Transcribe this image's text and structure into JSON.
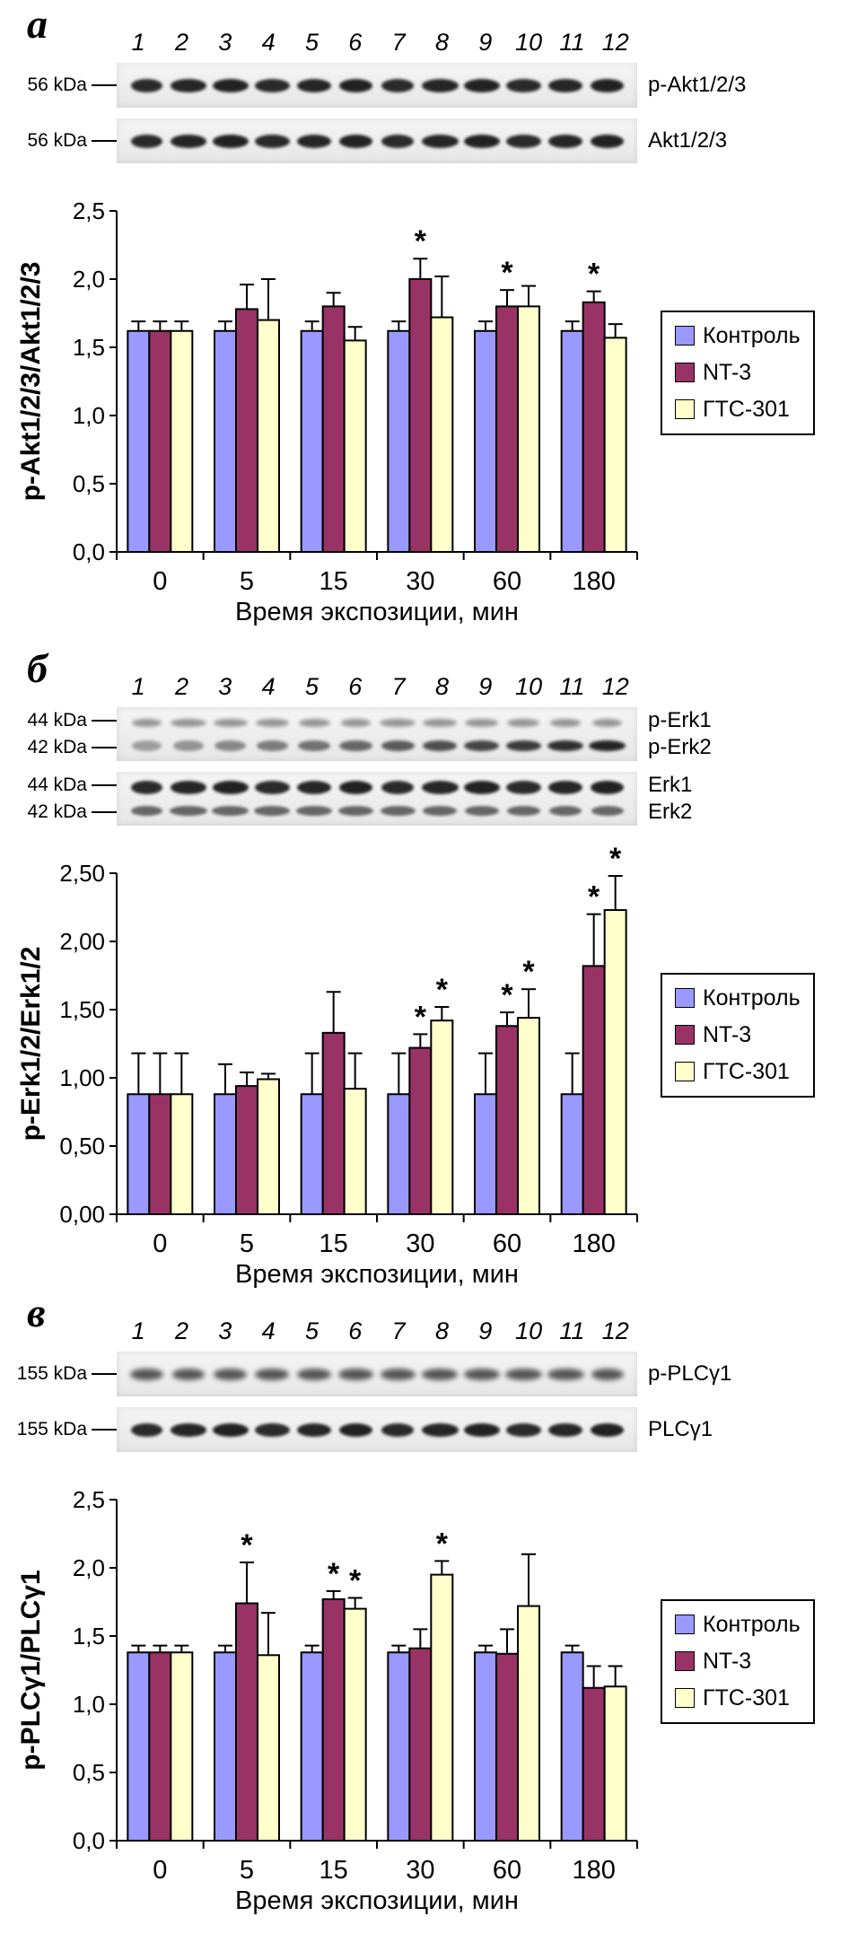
{
  "panels": [
    {
      "letter": "а",
      "lanes": [
        "1",
        "2",
        "3",
        "4",
        "5",
        "6",
        "7",
        "8",
        "9",
        "10",
        "11",
        "12"
      ],
      "blots": [
        {
          "rows": [
            {
              "marker": "56 kDa",
              "label": "p-Akt1/2/3",
              "intensity": "strong"
            }
          ]
        },
        {
          "rows": [
            {
              "marker": "56 kDa",
              "label": "Akt1/2/3",
              "intensity": "strong"
            }
          ]
        }
      ]
    },
    {
      "letter": "б",
      "lanes": [
        "1",
        "2",
        "3",
        "4",
        "5",
        "6",
        "7",
        "8",
        "9",
        "10",
        "11",
        "12"
      ],
      "blots": [
        {
          "rows": [
            {
              "marker": "44 kDa",
              "label": "p-Erk1",
              "intensity": "faint"
            },
            {
              "marker": "42 kDa",
              "label": "p-Erk2",
              "intensity": "gradient"
            }
          ]
        },
        {
          "rows": [
            {
              "marker": "44 kDa",
              "label": "Erk1",
              "intensity": "strong"
            },
            {
              "marker": "42 kDa",
              "label": "Erk2",
              "intensity": "medium"
            }
          ]
        }
      ]
    },
    {
      "letter": "в",
      "lanes": [
        "1",
        "2",
        "3",
        "4",
        "5",
        "6",
        "7",
        "8",
        "9",
        "10",
        "11",
        "12"
      ],
      "blots": [
        {
          "rows": [
            {
              "marker": "155 kDa",
              "label": "p-PLCγ1",
              "intensity": "fuzzy"
            }
          ]
        },
        {
          "rows": [
            {
              "marker": "155 kDa",
              "label": "PLCγ1",
              "intensity": "strong"
            }
          ]
        }
      ]
    }
  ],
  "chart_data": [
    {
      "type": "bar",
      "categories": [
        "0",
        "5",
        "15",
        "30",
        "60",
        "180"
      ],
      "series": [
        {
          "name": "Контроль",
          "color": "#9999FF",
          "values": [
            1.62,
            1.62,
            1.62,
            1.62,
            1.62,
            1.62
          ],
          "errors": [
            0.07,
            0.07,
            0.07,
            0.07,
            0.07,
            0.07
          ],
          "sig": [
            "",
            "",
            "",
            "",
            "",
            ""
          ]
        },
        {
          "name": "NT-3",
          "color": "#993366",
          "values": [
            1.62,
            1.78,
            1.8,
            2.0,
            1.8,
            1.83
          ],
          "errors": [
            0.07,
            0.18,
            0.1,
            0.15,
            0.12,
            0.08
          ],
          "sig": [
            "",
            "",
            "",
            "*",
            "*",
            "*"
          ]
        },
        {
          "name": "ГТС-301",
          "color": "#FFFFCC",
          "values": [
            1.62,
            1.7,
            1.55,
            1.72,
            1.8,
            1.57
          ],
          "errors": [
            0.07,
            0.3,
            0.1,
            0.3,
            0.15,
            0.1
          ],
          "sig": [
            "",
            "",
            "",
            "",
            "",
            ""
          ]
        }
      ],
      "xlabel": "Время экспозиции, мин",
      "ylabel": "p-Akt1/2/3/Akt1/2/3",
      "ylim": [
        0,
        2.5
      ],
      "ytick_labels": [
        "0,0",
        "0,5",
        "1,0",
        "1,5",
        "2,0",
        "2,5"
      ],
      "grid": false,
      "legend_position": "right"
    },
    {
      "type": "bar",
      "categories": [
        "0",
        "5",
        "15",
        "30",
        "60",
        "180"
      ],
      "series": [
        {
          "name": "Контроль",
          "color": "#9999FF",
          "values": [
            0.88,
            0.88,
            0.88,
            0.88,
            0.88,
            0.88
          ],
          "errors": [
            0.3,
            0.22,
            0.3,
            0.3,
            0.3,
            0.3
          ],
          "sig": [
            "",
            "",
            "",
            "",
            "",
            ""
          ]
        },
        {
          "name": "NT-3",
          "color": "#993366",
          "values": [
            0.88,
            0.94,
            1.33,
            1.22,
            1.38,
            1.82
          ],
          "errors": [
            0.3,
            0.1,
            0.3,
            0.1,
            0.1,
            0.38
          ],
          "sig": [
            "",
            "",
            "",
            "*",
            "*",
            "*"
          ]
        },
        {
          "name": "ГТС-301",
          "color": "#FFFFCC",
          "values": [
            0.88,
            0.99,
            0.92,
            1.42,
            1.44,
            2.23
          ],
          "errors": [
            0.3,
            0.04,
            0.26,
            0.1,
            0.21,
            0.25
          ],
          "sig": [
            "",
            "",
            "",
            "*",
            "*",
            "*"
          ]
        }
      ],
      "xlabel": "Время экспозиции, мин",
      "ylabel": "p-Erk1/2/Erk1/2",
      "ylim": [
        0,
        2.5
      ],
      "ytick_labels": [
        "0,00",
        "0,50",
        "1,00",
        "1,50",
        "2,00",
        "2,50"
      ],
      "grid": false,
      "legend_position": "right"
    },
    {
      "type": "bar",
      "categories": [
        "0",
        "5",
        "15",
        "30",
        "60",
        "180"
      ],
      "series": [
        {
          "name": "Контроль",
          "color": "#9999FF",
          "values": [
            1.38,
            1.38,
            1.38,
            1.38,
            1.38,
            1.38
          ],
          "errors": [
            0.05,
            0.05,
            0.05,
            0.05,
            0.05,
            0.05
          ],
          "sig": [
            "",
            "",
            "",
            "",
            "",
            ""
          ]
        },
        {
          "name": "NT-3",
          "color": "#993366",
          "values": [
            1.38,
            1.74,
            1.77,
            1.41,
            1.37,
            1.12
          ],
          "errors": [
            0.05,
            0.3,
            0.06,
            0.14,
            0.18,
            0.16
          ],
          "sig": [
            "",
            "*",
            "*",
            "",
            "",
            ""
          ]
        },
        {
          "name": "ГТС-301",
          "color": "#FFFFCC",
          "values": [
            1.38,
            1.36,
            1.7,
            1.95,
            1.72,
            1.13
          ],
          "errors": [
            0.05,
            0.31,
            0.08,
            0.1,
            0.38,
            0.15
          ],
          "sig": [
            "",
            "",
            "*",
            "*",
            "",
            ""
          ]
        }
      ],
      "xlabel": "Время экспозиции, мин",
      "ylabel": "p-PLCγ1/PLCγ1",
      "ylim": [
        0,
        2.5
      ],
      "ytick_labels": [
        "0,0",
        "0,5",
        "1,0",
        "1,5",
        "2,0",
        "2,5"
      ],
      "grid": false,
      "legend_position": "right"
    }
  ]
}
